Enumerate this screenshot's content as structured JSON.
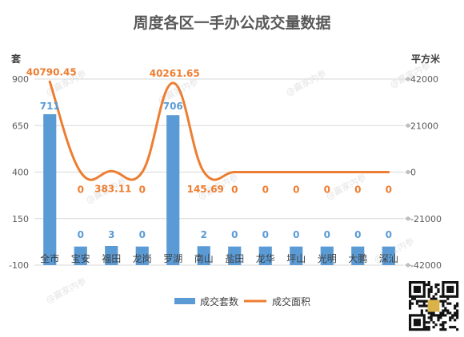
{
  "chart_data": {
    "type": "bar+line",
    "title": "周度各区一手办公成交量数据",
    "categories": [
      "全市",
      "宝安",
      "福田",
      "龙岗",
      "罗湖",
      "南山",
      "盐田",
      "龙华",
      "坪山",
      "光明",
      "大鹏",
      "深汕"
    ],
    "series": [
      {
        "name": "成交套数",
        "type": "bar",
        "axis": "left",
        "color": "#5b9bd5",
        "values": [
          711,
          0,
          3,
          0,
          706,
          2,
          0,
          0,
          0,
          0,
          0,
          0
        ],
        "labels": [
          "711",
          "0",
          "3",
          "0",
          "706",
          "2",
          "0",
          "0",
          "0",
          "0",
          "0",
          "0"
        ]
      },
      {
        "name": "成交面积",
        "type": "line",
        "axis": "right",
        "color": "#ed7d31",
        "values": [
          40790.45,
          0,
          383.11,
          0,
          40261.65,
          145.69,
          0,
          0,
          0,
          0,
          0,
          0
        ],
        "labels": [
          "40790.45",
          "0",
          "383.11",
          "0",
          "40261.65",
          "145.69",
          "0",
          "0",
          "0",
          "0",
          "0",
          "0"
        ]
      }
    ],
    "y_left": {
      "label": "套",
      "ylim": [
        -100,
        900
      ],
      "ticks": [
        -100,
        150,
        400,
        650,
        900
      ]
    },
    "y_right": {
      "label": "平方米",
      "ylim": [
        -42000,
        42000
      ],
      "ticks": [
        -42000,
        -21000,
        0,
        21000,
        42000
      ]
    },
    "grid": true,
    "legend_position": "bottom"
  },
  "watermark": "@赢家内参"
}
